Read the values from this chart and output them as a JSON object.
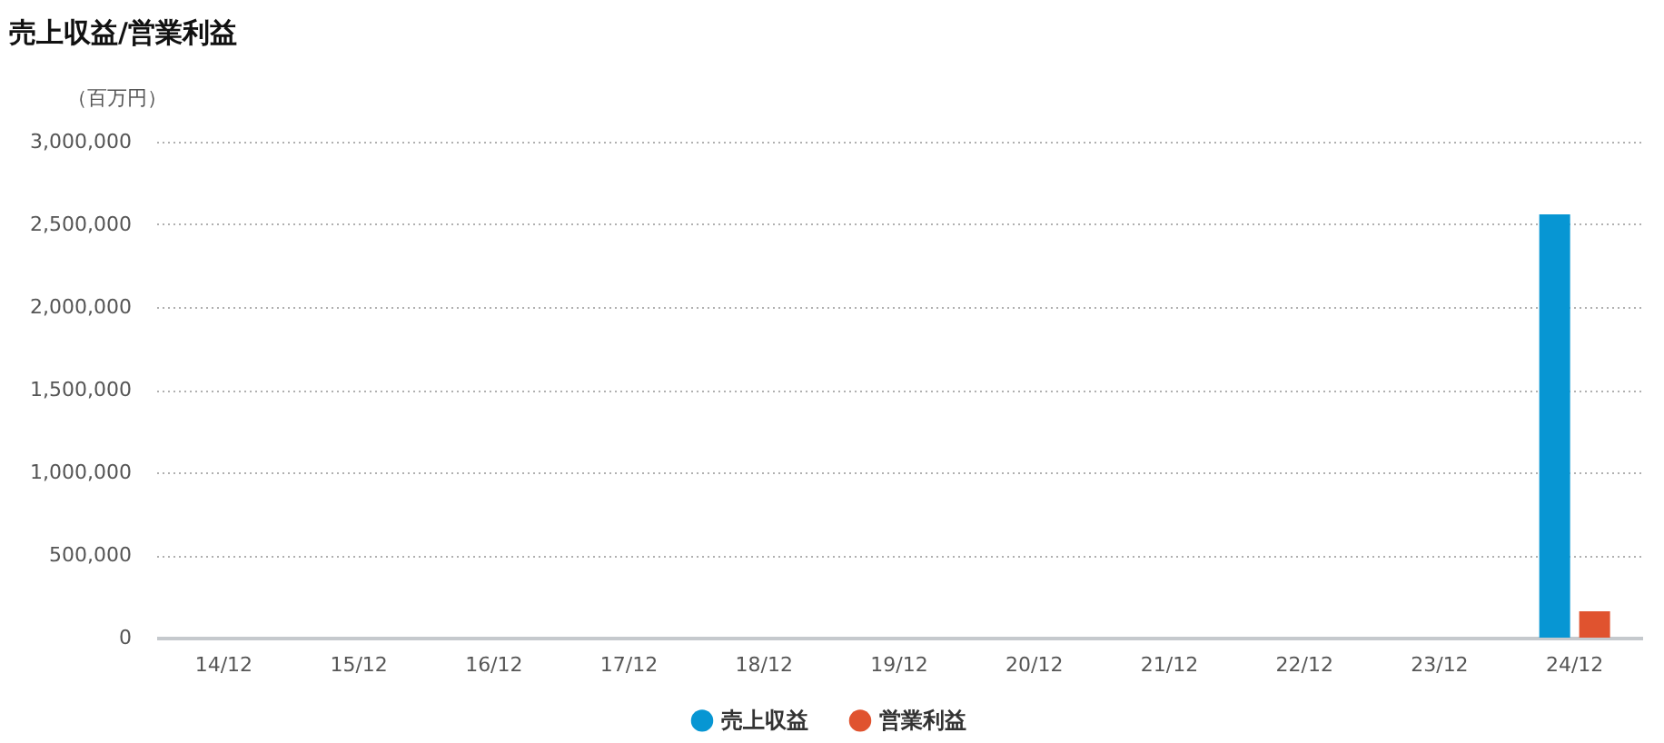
{
  "chart_data": {
    "type": "bar",
    "title": "売上収益/営業利益",
    "ylabel": "（百万円）",
    "categories": [
      "14/12",
      "15/12",
      "16/12",
      "17/12",
      "18/12",
      "19/12",
      "20/12",
      "21/12",
      "22/12",
      "23/12",
      "24/12"
    ],
    "series": [
      {
        "name": "売上収益",
        "color": "#0796d3",
        "values": [
          null,
          null,
          null,
          null,
          null,
          null,
          null,
          null,
          null,
          null,
          2560000
        ]
      },
      {
        "name": "営業利益",
        "color": "#e0532f",
        "values": [
          null,
          null,
          null,
          null,
          null,
          null,
          null,
          null,
          null,
          null,
          160000
        ]
      }
    ],
    "ylim": [
      0,
      3000000
    ],
    "yticks": [
      0,
      {
        "value": 500000,
        "label": "500,000"
      },
      {
        "value": 1000000,
        "label": "1,000,000"
      },
      {
        "value": 1500000,
        "label": "1,500,000"
      },
      {
        "value": 2000000,
        "label": "2,000,000"
      },
      {
        "value": 2500000,
        "label": "2,500,000"
      },
      {
        "value": 3000000,
        "label": "3,000,000"
      }
    ],
    "grid": "y",
    "legend": "bottom"
  }
}
